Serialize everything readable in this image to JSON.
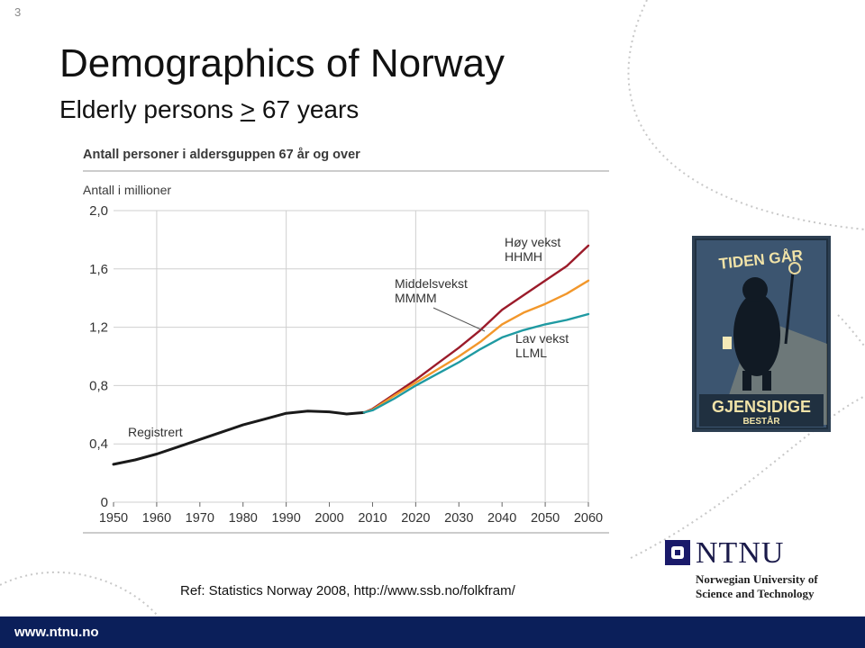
{
  "slide_number": "3",
  "title": "Demographics of Norway",
  "subtitle": {
    "prefix": "Elderly persons ",
    "symbol": ">",
    "suffix": " 67 years"
  },
  "reference": "Ref: Statistics Norway 2008, http://www.ssb.no/folkfram/",
  "footer": {
    "url": "www.ntnu.no"
  },
  "logo": {
    "word": "NTNU",
    "line1": "Norwegian University of",
    "line2": "Science and Technology"
  },
  "poster": {
    "top_text": "TIDEN GÅR",
    "bottom_text": "GJENSIDIGE",
    "bottom_sub": "BESTÅR"
  },
  "colors": {
    "footer": "#0b1f5a",
    "registered": "#1a1a1a",
    "high": "#9b1b2a",
    "medium": "#f2972b",
    "low": "#1f9aa2"
  },
  "chart_data": {
    "type": "line",
    "title": "Antall personer i aldersguppen 67 år og over",
    "ylabel": "Antall i millioner",
    "xlim": [
      1950,
      2060
    ],
    "ylim": [
      0,
      2.0
    ],
    "x_ticks": [
      "1950",
      "1960",
      "1970",
      "1980",
      "1990",
      "2000",
      "2010",
      "2020",
      "2030",
      "2040",
      "2050",
      "2060"
    ],
    "y_ticks": [
      "0",
      "0,4",
      "0,8",
      "1,2",
      "1,6",
      "2,0"
    ],
    "series": [
      {
        "name": "Registrert",
        "color": "#1a1a1a",
        "x": [
          1950,
          1955,
          1960,
          1965,
          1970,
          1975,
          1980,
          1985,
          1990,
          1995,
          2000,
          2004,
          2008
        ],
        "y": [
          0.26,
          0.29,
          0.33,
          0.38,
          0.43,
          0.48,
          0.53,
          0.57,
          0.61,
          0.625,
          0.62,
          0.605,
          0.615
        ]
      },
      {
        "name": "Høy vekst HHMH",
        "color": "#9b1b2a",
        "x": [
          2008,
          2010,
          2015,
          2020,
          2025,
          2030,
          2035,
          2040,
          2045,
          2050,
          2055,
          2060
        ],
        "y": [
          0.615,
          0.64,
          0.74,
          0.84,
          0.95,
          1.06,
          1.18,
          1.32,
          1.42,
          1.52,
          1.62,
          1.76
        ]
      },
      {
        "name": "Middelsvekst MMMM",
        "color": "#f2972b",
        "x": [
          2008,
          2010,
          2015,
          2020,
          2025,
          2030,
          2035,
          2040,
          2045,
          2050,
          2055,
          2060
        ],
        "y": [
          0.615,
          0.635,
          0.73,
          0.82,
          0.91,
          1.0,
          1.1,
          1.22,
          1.3,
          1.36,
          1.43,
          1.52
        ]
      },
      {
        "name": "Lav vekst LLML",
        "color": "#1f9aa2",
        "x": [
          2008,
          2010,
          2015,
          2020,
          2025,
          2030,
          2035,
          2040,
          2045,
          2050,
          2055,
          2060
        ],
        "y": [
          0.615,
          0.63,
          0.71,
          0.8,
          0.88,
          0.96,
          1.05,
          1.13,
          1.18,
          1.22,
          1.25,
          1.29
        ]
      }
    ],
    "labels": {
      "registered": "Registrert",
      "high_1": "Høy vekst",
      "high_2": "HHMH",
      "medium_1": "Middelsvekst",
      "medium_2": "MMMM",
      "low_1": "Lav vekst",
      "low_2": "LLML"
    }
  }
}
